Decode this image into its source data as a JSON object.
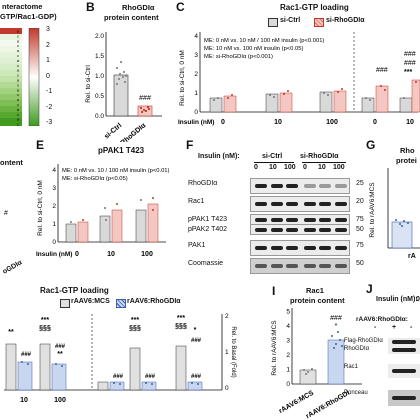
{
  "panels": {
    "A": {
      "title_line1": "nteractome",
      "title_line2": "GTP/Rac1-GDP)",
      "colorbar_ticks": [
        "3",
        "2",
        "1",
        "0",
        "-1",
        "-2",
        "-3"
      ],
      "row_labels": [
        "a",
        "c",
        "a",
        "c",
        "a",
        "c",
        "a",
        "c",
        "a",
        "c",
        "a",
        "c",
        "a",
        "c",
        "a",
        "c",
        "a",
        "c",
        "a",
        "c"
      ]
    },
    "B": {
      "letter": "B",
      "title_line1": "RhoGDIα",
      "title_line2": "protein content",
      "ylabel": "Rel. to si-Ctrl",
      "stars": "###",
      "xtick1": "si-Ctrl",
      "xtick2": "si-RhoGDIα"
    },
    "C": {
      "letter": "C",
      "title": "Rac1-GTP loading",
      "legend1": "si-Ctrl",
      "legend2": "si-RhoGDIα",
      "ylabel": "Rel. to si-Ctrl, 0 nM",
      "me1": "ME: 0 nM vs. 10 nM / 100 nM insulin (p<0.001)",
      "me2": "ME: 10 nM vs. 100 nM insulin (p<0.05)",
      "me3": "ME: si-RhoGDIα (p<0.001)",
      "xaxis": "Insulin (nM)",
      "xticks": [
        "0",
        "10",
        "100",
        "0",
        "10"
      ],
      "ann1": "###",
      "ann2": "###",
      "ann3": "###",
      "ann4": "***"
    },
    "D": {
      "title": "ontent",
      "marker": "#",
      "tick": "oGDIα"
    },
    "E": {
      "letter": "E",
      "title": "pPAK1 T423",
      "ylabel": "Rel. to si-Ctrl, 0 nM",
      "me1": "ME: 0 nM vs. 10 / 100 nM insulin (p<0.01)",
      "me2": "ME: si-RhoGDIα (p<0.05)",
      "xaxis": "Insulin (nM)",
      "xticks": [
        "0",
        "10",
        "100"
      ]
    },
    "F": {
      "letter": "F",
      "insulin_label": "Insulin (nM):",
      "group1": "si-Ctrl",
      "group2": "si-RhoGDIα",
      "lanes": [
        "0",
        "10",
        "100",
        "0",
        "10",
        "100"
      ],
      "rows": [
        "RhoGDIα",
        "Rac1",
        "pPAK1 T423",
        "pPAK2 T402",
        "PAK1",
        "Coomassie"
      ],
      "mw": [
        "25",
        "20",
        "75",
        "50",
        "75",
        "50"
      ]
    },
    "G": {
      "letter": "G",
      "title_line1": "Rho",
      "title_line2": "protei",
      "ylabel": "Rel. to rAAV6:MCS",
      "tick": "rA"
    },
    "H": {
      "title": "Rac1-GTP loading",
      "legend1": "rAAV6:MCS",
      "legend2": "rAAV6:RhoGDIα",
      "right_axis_label": "Rel. to Basal (Fold)",
      "right_ticks": [
        "2",
        "1",
        "0"
      ],
      "xticks": [
        "10",
        "100"
      ],
      "ann_stars": [
        "**",
        "***",
        "§§§",
        "**",
        "***",
        "§§§",
        "***",
        "§§§",
        "*"
      ],
      "ann_hash": [
        "###",
        "###",
        "###",
        "###",
        "###",
        "###"
      ]
    },
    "I": {
      "letter": "I",
      "title_line1": "Rac1",
      "title_line2": "protein content",
      "ylabel": "Rel. to rAAV6:MCS",
      "ann1": "###",
      "ann2": "*",
      "yticks": [
        "0",
        "1",
        "2",
        "3",
        "4",
        "5"
      ],
      "xtick1": "rAAV6:MCS",
      "xtick2": "rAAV6:RhoGDI"
    },
    "J": {
      "letter": "J",
      "insulin_label": "Insulin (nM):",
      "insulin_value": "0",
      "rAAV_label": "rAAV6:RhoGDIα:",
      "lanes": [
        "-",
        "+",
        "-"
      ],
      "rows": [
        "Flag-RhoGDIα",
        "RhoGDIα",
        "Rac1",
        "Ponceau"
      ]
    },
    "B_yticks": [
      "0.0",
      "0.5",
      "1.0",
      "1.5",
      "2.0"
    ],
    "C_yticks": [
      "0",
      "1",
      "2",
      "3",
      "4"
    ],
    "E_yticks": [
      "0",
      "1",
      "2",
      "3",
      "4"
    ]
  }
}
